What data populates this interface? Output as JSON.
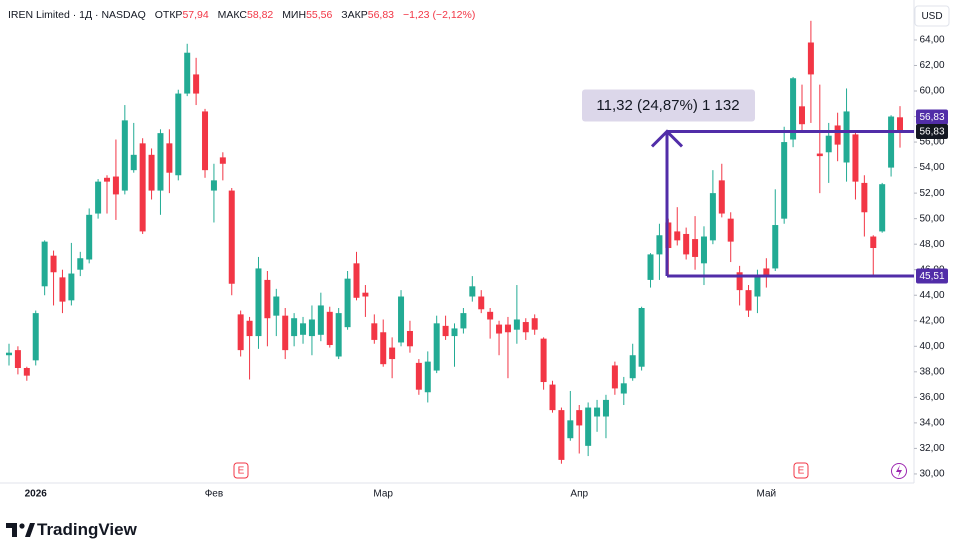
{
  "header": {
    "symbol": "IREN Limited · 1Д · NASDAQ",
    "fields": [
      {
        "label": "ОТКР",
        "value": "57,94"
      },
      {
        "label": "МАКС",
        "value": "58,82"
      },
      {
        "label": "МИН",
        "value": "55,56"
      },
      {
        "label": "ЗАКР",
        "value": "56,83"
      }
    ],
    "change": "−1,23 (−2,12%)"
  },
  "chart_data": {
    "type": "candlestick",
    "currency": "USD",
    "categories": [
      null,
      null,
      null,
      "2026",
      null,
      null,
      null,
      null,
      null,
      null,
      null,
      null,
      null,
      null,
      null,
      null,
      null,
      null,
      null,
      null,
      null,
      null,
      null,
      "Фев",
      null,
      null,
      null,
      null,
      null,
      null,
      null,
      null,
      null,
      null,
      null,
      null,
      null,
      null,
      null,
      null,
      null,
      null,
      "Мар",
      null,
      null,
      null,
      null,
      null,
      null,
      null,
      null,
      null,
      null,
      null,
      null,
      null,
      null,
      null,
      null,
      null,
      null,
      null,
      null,
      null,
      "Апр",
      null,
      null,
      null,
      null,
      null,
      null,
      null,
      null,
      null,
      null,
      null,
      null,
      null,
      null,
      null,
      null,
      null,
      null,
      null,
      null,
      "Май",
      null,
      null,
      null,
      null,
      null,
      null,
      null,
      null,
      null,
      null,
      null,
      null,
      null,
      null,
      null
    ],
    "open": [
      39.3,
      39.7,
      38.3,
      38.9,
      44.7,
      47.1,
      45.4,
      43.6,
      46.0,
      46.8,
      50.4,
      53.2,
      53.3,
      52.2,
      53.8,
      55.9,
      55.0,
      52.2,
      55.9,
      53.4,
      59.8,
      61.3,
      58.4,
      52.2,
      54.8,
      52.2,
      42.5,
      42.0,
      40.8,
      45.2,
      42.4,
      42.4,
      40.8,
      40.9,
      40.8,
      40.9,
      42.7,
      39.2,
      41.5,
      46.5,
      44.2,
      41.8,
      41.1,
      39.9,
      40.3,
      41.2,
      38.7,
      36.4,
      38.1,
      41.6,
      40.8,
      41.4,
      43.9,
      43.9,
      42.7,
      41.7,
      41.7,
      41.3,
      41.9,
      42.2,
      40.6,
      37.0,
      35.0,
      32.8,
      35.0,
      32.2,
      34.5,
      34.5,
      38.5,
      36.3,
      37.5,
      38.4,
      45.2,
      47.2,
      49.7,
      49.0,
      48.8,
      48.4,
      46.5,
      48.3,
      53.0,
      50.0,
      45.8,
      44.4,
      43.9,
      46.1,
      46.1,
      50.0,
      56.2,
      58.8,
      63.8,
      55.1,
      55.2,
      57.3,
      54.4,
      56.6,
      52.8,
      48.6,
      49.0,
      54.0,
      57.94
    ],
    "high": [
      40.2,
      40.0,
      38.4,
      42.8,
      48.3,
      47.5,
      46.0,
      48.1,
      47.4,
      50.8,
      53.1,
      53.4,
      56.2,
      58.9,
      57.5,
      56.3,
      55.5,
      57.0,
      57.0,
      60.1,
      63.7,
      62.6,
      58.6,
      54.3,
      55.2,
      52.4,
      42.8,
      42.3,
      47.0,
      45.9,
      44.5,
      43.0,
      42.6,
      42.3,
      43.2,
      44.2,
      43.1,
      43.0,
      45.9,
      47.4,
      44.8,
      42.5,
      42.1,
      40.7,
      44.4,
      42.0,
      39.0,
      39.6,
      42.4,
      42.4,
      41.8,
      43.0,
      45.5,
      44.4,
      43.0,
      42.0,
      42.3,
      44.8,
      42.2,
      42.5,
      40.7,
      37.3,
      35.2,
      36.5,
      35.4,
      35.6,
      35.8,
      36.2,
      38.8,
      37.6,
      40.2,
      43.1,
      47.3,
      49.6,
      50.0,
      50.9,
      49.3,
      50.2,
      49.4,
      53.8,
      54.3,
      50.5,
      46.3,
      44.8,
      46.0,
      46.9,
      52.3,
      57.2,
      61.1,
      60.5,
      65.5,
      60.5,
      57.5,
      58.3,
      60.2,
      56.8,
      53.4,
      48.7,
      52.8,
      58.1,
      58.82
    ],
    "low": [
      38.5,
      37.8,
      37.3,
      38.5,
      44.0,
      43.2,
      42.6,
      43.2,
      45.5,
      46.5,
      50.0,
      50.4,
      49.9,
      51.9,
      53.6,
      48.8,
      51.5,
      50.3,
      52.0,
      53.0,
      59.6,
      58.9,
      53.2,
      49.7,
      53.0,
      44.0,
      39.2,
      37.4,
      39.8,
      40.0,
      40.8,
      39.0,
      40.0,
      40.2,
      39.3,
      40.4,
      39.9,
      39.0,
      41.3,
      43.6,
      42.3,
      40.2,
      38.4,
      37.5,
      40.0,
      39.5,
      36.2,
      35.6,
      37.9,
      40.5,
      38.4,
      41.0,
      43.5,
      42.6,
      40.6,
      39.3,
      37.5,
      40.2,
      40.5,
      40.9,
      36.6,
      34.8,
      30.8,
      32.6,
      31.6,
      31.4,
      33.3,
      32.8,
      36.2,
      35.4,
      37.3,
      38.1,
      44.6,
      45.2,
      45.4,
      47.9,
      46.8,
      46.0,
      44.8,
      48.0,
      50.1,
      46.6,
      43.2,
      42.3,
      42.6,
      44.6,
      45.9,
      49.6,
      55.6,
      56.9,
      57.5,
      52.0,
      52.8,
      54.5,
      52.9,
      51.5,
      48.6,
      45.6,
      48.9,
      53.3,
      55.56
    ],
    "close": [
      39.5,
      38.3,
      37.7,
      42.6,
      48.2,
      45.8,
      43.5,
      45.7,
      46.9,
      50.3,
      52.9,
      52.9,
      51.9,
      57.7,
      55.0,
      49.0,
      52.2,
      56.7,
      53.6,
      59.8,
      63.0,
      59.8,
      53.8,
      53.0,
      54.3,
      44.9,
      39.7,
      40.8,
      46.1,
      42.2,
      43.9,
      39.7,
      42.2,
      41.8,
      42.1,
      43.2,
      40.1,
      42.6,
      45.3,
      43.8,
      43.9,
      40.5,
      38.6,
      39.0,
      43.9,
      40.0,
      36.6,
      38.8,
      41.8,
      40.8,
      41.4,
      42.6,
      44.7,
      42.9,
      42.1,
      41.0,
      41.1,
      42.1,
      41.1,
      41.3,
      37.2,
      35.0,
      31.1,
      34.2,
      33.8,
      35.2,
      35.2,
      35.8,
      36.7,
      37.1,
      39.3,
      43.0,
      47.2,
      48.7,
      47.7,
      48.3,
      47.2,
      47.0,
      48.6,
      52.0,
      50.4,
      48.2,
      44.4,
      42.8,
      45.6,
      45.6,
      49.5,
      56.0,
      61.0,
      57.4,
      61.3,
      54.9,
      56.5,
      55.8,
      58.4,
      52.9,
      50.5,
      47.7,
      52.7,
      58.0,
      56.83
    ],
    "up_color": "#22ab94",
    "down_color": "#f23645",
    "ylim": [
      29.29,
      67.13
    ],
    "yticks": [
      {
        "value": 30,
        "label": "30,00"
      },
      {
        "value": 32,
        "label": "32,00"
      },
      {
        "value": 34,
        "label": "34,00"
      },
      {
        "value": 36,
        "label": "36,00"
      },
      {
        "value": 38,
        "label": "38,00"
      },
      {
        "value": 40,
        "label": "40,00"
      },
      {
        "value": 42,
        "label": "42,00"
      },
      {
        "value": 44,
        "label": "44,00"
      },
      {
        "value": 46,
        "label": "46,00"
      },
      {
        "value": 48,
        "label": "48,00"
      },
      {
        "value": 50,
        "label": "50,00"
      },
      {
        "value": 52,
        "label": "52,00"
      },
      {
        "value": 54,
        "label": "54,00"
      },
      {
        "value": 56,
        "label": "56,00"
      },
      {
        "value": 58,
        "label": "58,00"
      },
      {
        "value": 60,
        "label": "60,00"
      },
      {
        "value": 62,
        "label": "62,00"
      },
      {
        "value": 64,
        "label": "64,00"
      }
    ],
    "grid": false,
    "last_price": {
      "value": 56.83,
      "label": "56,83"
    },
    "drawing": {
      "color": "#512da8",
      "top": {
        "value": 56.83,
        "label": "56,83"
      },
      "bottom": {
        "value": 45.51,
        "label": "45,51"
      },
      "measure_label": "11,32 (24,87%) 1 132"
    }
  },
  "footer": {
    "brand": "TradingView"
  }
}
